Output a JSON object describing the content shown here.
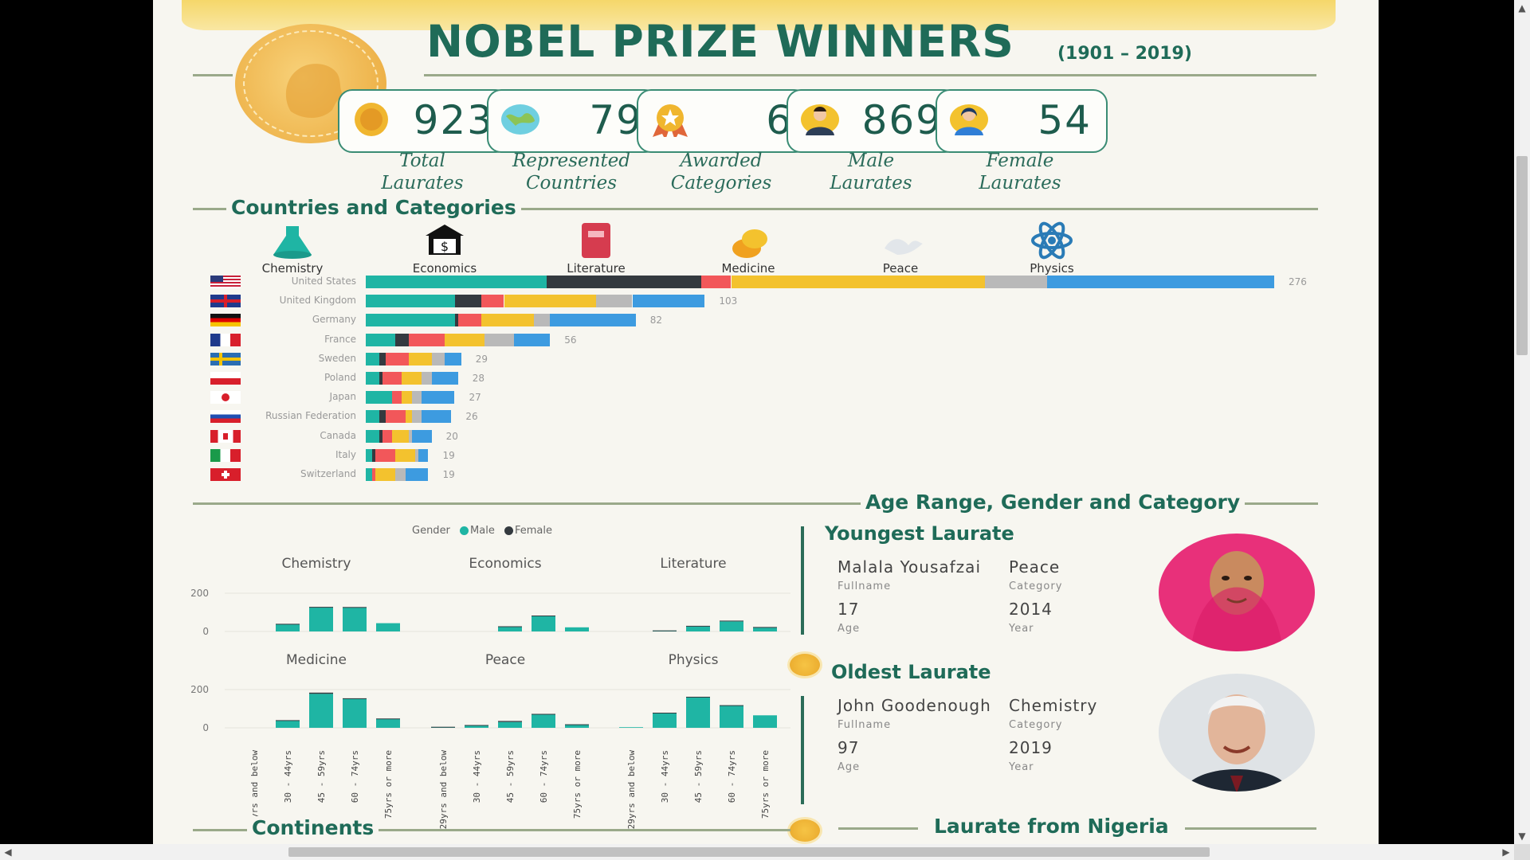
{
  "poster": {
    "title": "NOBEL PRIZE WINNERS",
    "years": "(1901 – 2019)"
  },
  "stats": [
    {
      "value": "923",
      "label1": "Total",
      "label2": "Laurates",
      "icon": "medal-icon"
    },
    {
      "value": "79",
      "label1": "Represented",
      "label2": "Countries",
      "icon": "globe-icon"
    },
    {
      "value": "6",
      "label1": "Awarded",
      "label2": "Categories",
      "icon": "award-ribbon-icon"
    },
    {
      "value": "869",
      "label1": "Male",
      "label2": "Laurates",
      "icon": "male-person-icon"
    },
    {
      "value": "54",
      "label1": "Female",
      "label2": "Laurates",
      "icon": "female-person-icon"
    }
  ],
  "sections": {
    "countries": "Countries and Categories",
    "age": "Age Range, Gender and Category",
    "continents": "Continents",
    "nigeria": "Laurate from Nigeria"
  },
  "colors": {
    "chemistry": "#1fb5a4",
    "economics": "#343a3f",
    "literature": "#f2575a",
    "medicine": "#f3c22e",
    "peace": "#b9b9b9",
    "physics": "#3d9be0",
    "male": "#1fb5a4",
    "female": "#343a3f",
    "accent": "#1f6b58"
  },
  "chart_data": [
    {
      "type": "bar",
      "orientation": "horizontal",
      "stacked": true,
      "categories": [
        "United States",
        "United Kingdom",
        "Germany",
        "France",
        "Sweden",
        "Poland",
        "Japan",
        "Russian Federation",
        "Canada",
        "Italy",
        "Switzerland"
      ],
      "totals": [
        276,
        103,
        82,
        56,
        29,
        28,
        27,
        26,
        20,
        19,
        19
      ],
      "series": [
        {
          "name": "Chemistry",
          "icon": "flask-icon",
          "values": [
            55,
            27,
            27,
            9,
            4,
            4,
            8,
            4,
            4,
            2,
            2
          ]
        },
        {
          "name": "Economics",
          "icon": "bank-icon",
          "values": [
            47,
            8,
            1,
            4,
            2,
            1,
            0,
            2,
            1,
            1,
            0
          ]
        },
        {
          "name": "Literature",
          "icon": "book-icon",
          "values": [
            9,
            7,
            7,
            11,
            7,
            6,
            3,
            6,
            3,
            6,
            1
          ]
        },
        {
          "name": "Medicine",
          "icon": "pill-icon",
          "values": [
            77,
            28,
            16,
            12,
            7,
            6,
            3,
            2,
            5,
            6,
            6
          ]
        },
        {
          "name": "Peace",
          "icon": "dove-icon",
          "values": [
            19,
            11,
            5,
            9,
            4,
            3,
            3,
            3,
            1,
            1,
            3
          ]
        },
        {
          "name": "Physics",
          "icon": "atom-icon",
          "values": [
            69,
            22,
            26,
            11,
            5,
            8,
            10,
            9,
            6,
            3,
            7
          ]
        }
      ],
      "flags": [
        "us-flag",
        "uk-flag",
        "germany-flag",
        "france-flag",
        "sweden-flag",
        "poland-flag",
        "japan-flag",
        "russia-flag",
        "canada-flag",
        "italy-flag",
        "switzerland-flag"
      ]
    },
    {
      "type": "bar",
      "small_multiples": true,
      "legend_title": "Gender",
      "legend": [
        "Male",
        "Female"
      ],
      "bins": [
        "29yrs and below",
        "30 - 44yrs",
        "45 - 59yrs",
        "60 - 74yrs",
        "75yrs or more"
      ],
      "ylim": [
        0,
        230
      ],
      "yticks": [
        "200",
        "0"
      ],
      "panels": [
        {
          "name": "Chemistry",
          "male": [
            0,
            45,
            145,
            145,
            50
          ],
          "female": [
            0,
            1,
            3,
            2,
            0
          ]
        },
        {
          "name": "Economics",
          "male": [
            0,
            0,
            30,
            95,
            25
          ],
          "female": [
            0,
            0,
            1,
            1,
            0
          ]
        },
        {
          "name": "Literature",
          "male": [
            0,
            5,
            30,
            60,
            25
          ],
          "female": [
            0,
            1,
            4,
            5,
            2
          ]
        },
        {
          "name": "Medicine",
          "male": [
            0,
            45,
            205,
            175,
            55
          ],
          "female": [
            0,
            1,
            7,
            3,
            1
          ]
        },
        {
          "name": "Peace",
          "male": [
            5,
            12,
            35,
            80,
            20
          ],
          "female": [
            1,
            5,
            6,
            4,
            1
          ]
        },
        {
          "name": "Physics",
          "male": [
            4,
            90,
            185,
            135,
            75
          ],
          "female": [
            0,
            1,
            2,
            1,
            0
          ]
        }
      ]
    }
  ],
  "youngest": {
    "heading": "Youngest Laurate",
    "name": "Malala Yousafzai",
    "name_label": "Fullname",
    "category": "Peace",
    "category_label": "Category",
    "age": "17",
    "age_label": "Age",
    "year": "2014",
    "year_label": "Year"
  },
  "oldest": {
    "heading": "Oldest Laurate",
    "name": "John Goodenough",
    "name_label": "Fullname",
    "category": "Chemistry",
    "category_label": "Category",
    "age": "97",
    "age_label": "Age",
    "year": "2019",
    "year_label": "Year"
  },
  "scrollbars": {
    "up": "▲",
    "down": "▼",
    "left": "◀",
    "right": "▶"
  }
}
